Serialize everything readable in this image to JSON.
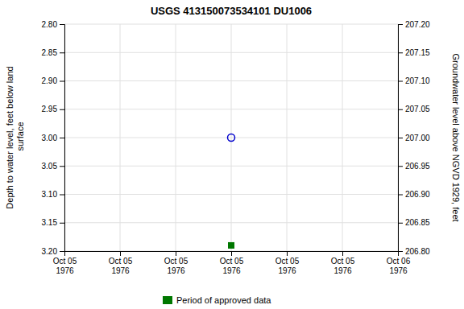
{
  "chart_data": {
    "type": "scatter",
    "title": "USGS 413150073534101 DU1006",
    "y_label": "Depth to water level, feet below land\n surface",
    "y2_label": "Groundwater level above NGVD 1929, feet",
    "categories": [
      "Oct 05\n1976",
      "Oct 05\n1976",
      "Oct 05\n1976",
      "Oct 05\n1976",
      "Oct 05\n1976",
      "Oct 05\n1976",
      "Oct 06\n1976"
    ],
    "series": [
      {
        "values": [
          null,
          null,
          null,
          3.0,
          null,
          null,
          null
        ],
        "color": "#0000cc",
        "marker": "circle"
      },
      {
        "name": "Period of approved data",
        "values": [
          null,
          null,
          null,
          3.19,
          null,
          null,
          null
        ],
        "color": "#007700",
        "marker": "square"
      }
    ],
    "ylim": [
      3.2,
      2.8
    ],
    "yticks": [
      {
        "value": 2.8,
        "label": "2.80"
      },
      2.85,
      {
        "value": 2.9,
        "label": "2.90"
      },
      2.95,
      {
        "value": 3.0,
        "label": "3.00"
      },
      3.05,
      {
        "value": 3.1,
        "label": "3.10"
      },
      3.15,
      {
        "value": 3.2,
        "label": "3.20"
      }
    ],
    "y2lim": [
      206.8,
      207.2
    ],
    "y2ticks": [
      {
        "value": 206.8,
        "label": "206.80"
      },
      206.85,
      {
        "value": 206.9,
        "label": "206.90"
      },
      206.95,
      {
        "value": 207.0,
        "label": "207.00"
      },
      207.05,
      {
        "value": 207.1,
        "label": "207.10"
      },
      207.15,
      {
        "value": 207.2,
        "label": "207.20"
      }
    ],
    "grid": true,
    "legend": "bottom"
  }
}
